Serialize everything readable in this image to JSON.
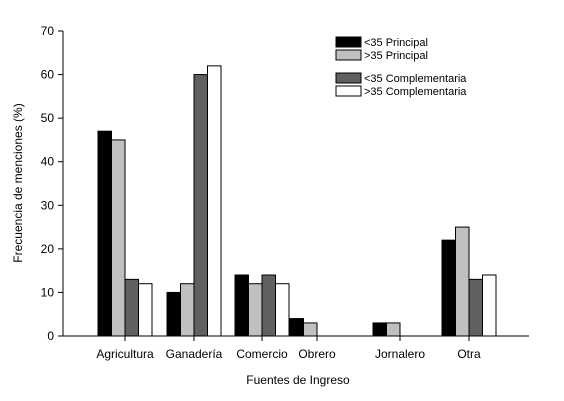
{
  "chart_data": {
    "type": "bar",
    "xlabel": "Fuentes de Ingreso",
    "ylabel": "Frecuencia de menciones (%)",
    "ylim": [
      0,
      70
    ],
    "yticks": [
      0,
      10,
      20,
      30,
      40,
      50,
      60,
      70
    ],
    "grid": false,
    "legend_position": "top-right",
    "categories": [
      "Agricultura",
      "Ganadería",
      "Comercio",
      "Obrero",
      "Jornalero",
      "Otra"
    ],
    "series": [
      {
        "name": "<35 Principal",
        "color": "#000000",
        "values": [
          47,
          10,
          14,
          4,
          3,
          22
        ]
      },
      {
        "name": ">35 Principal",
        "color": "#c0c0c0",
        "values": [
          45,
          12,
          12,
          3,
          3,
          25
        ]
      },
      {
        "name": "<35 Complementaria",
        "color": "#606060",
        "values": [
          13,
          60,
          14,
          0,
          0,
          13
        ]
      },
      {
        "name": ">35 Complementaria",
        "color": "#ffffff",
        "values": [
          12,
          62,
          12,
          0,
          0,
          14
        ]
      }
    ]
  }
}
